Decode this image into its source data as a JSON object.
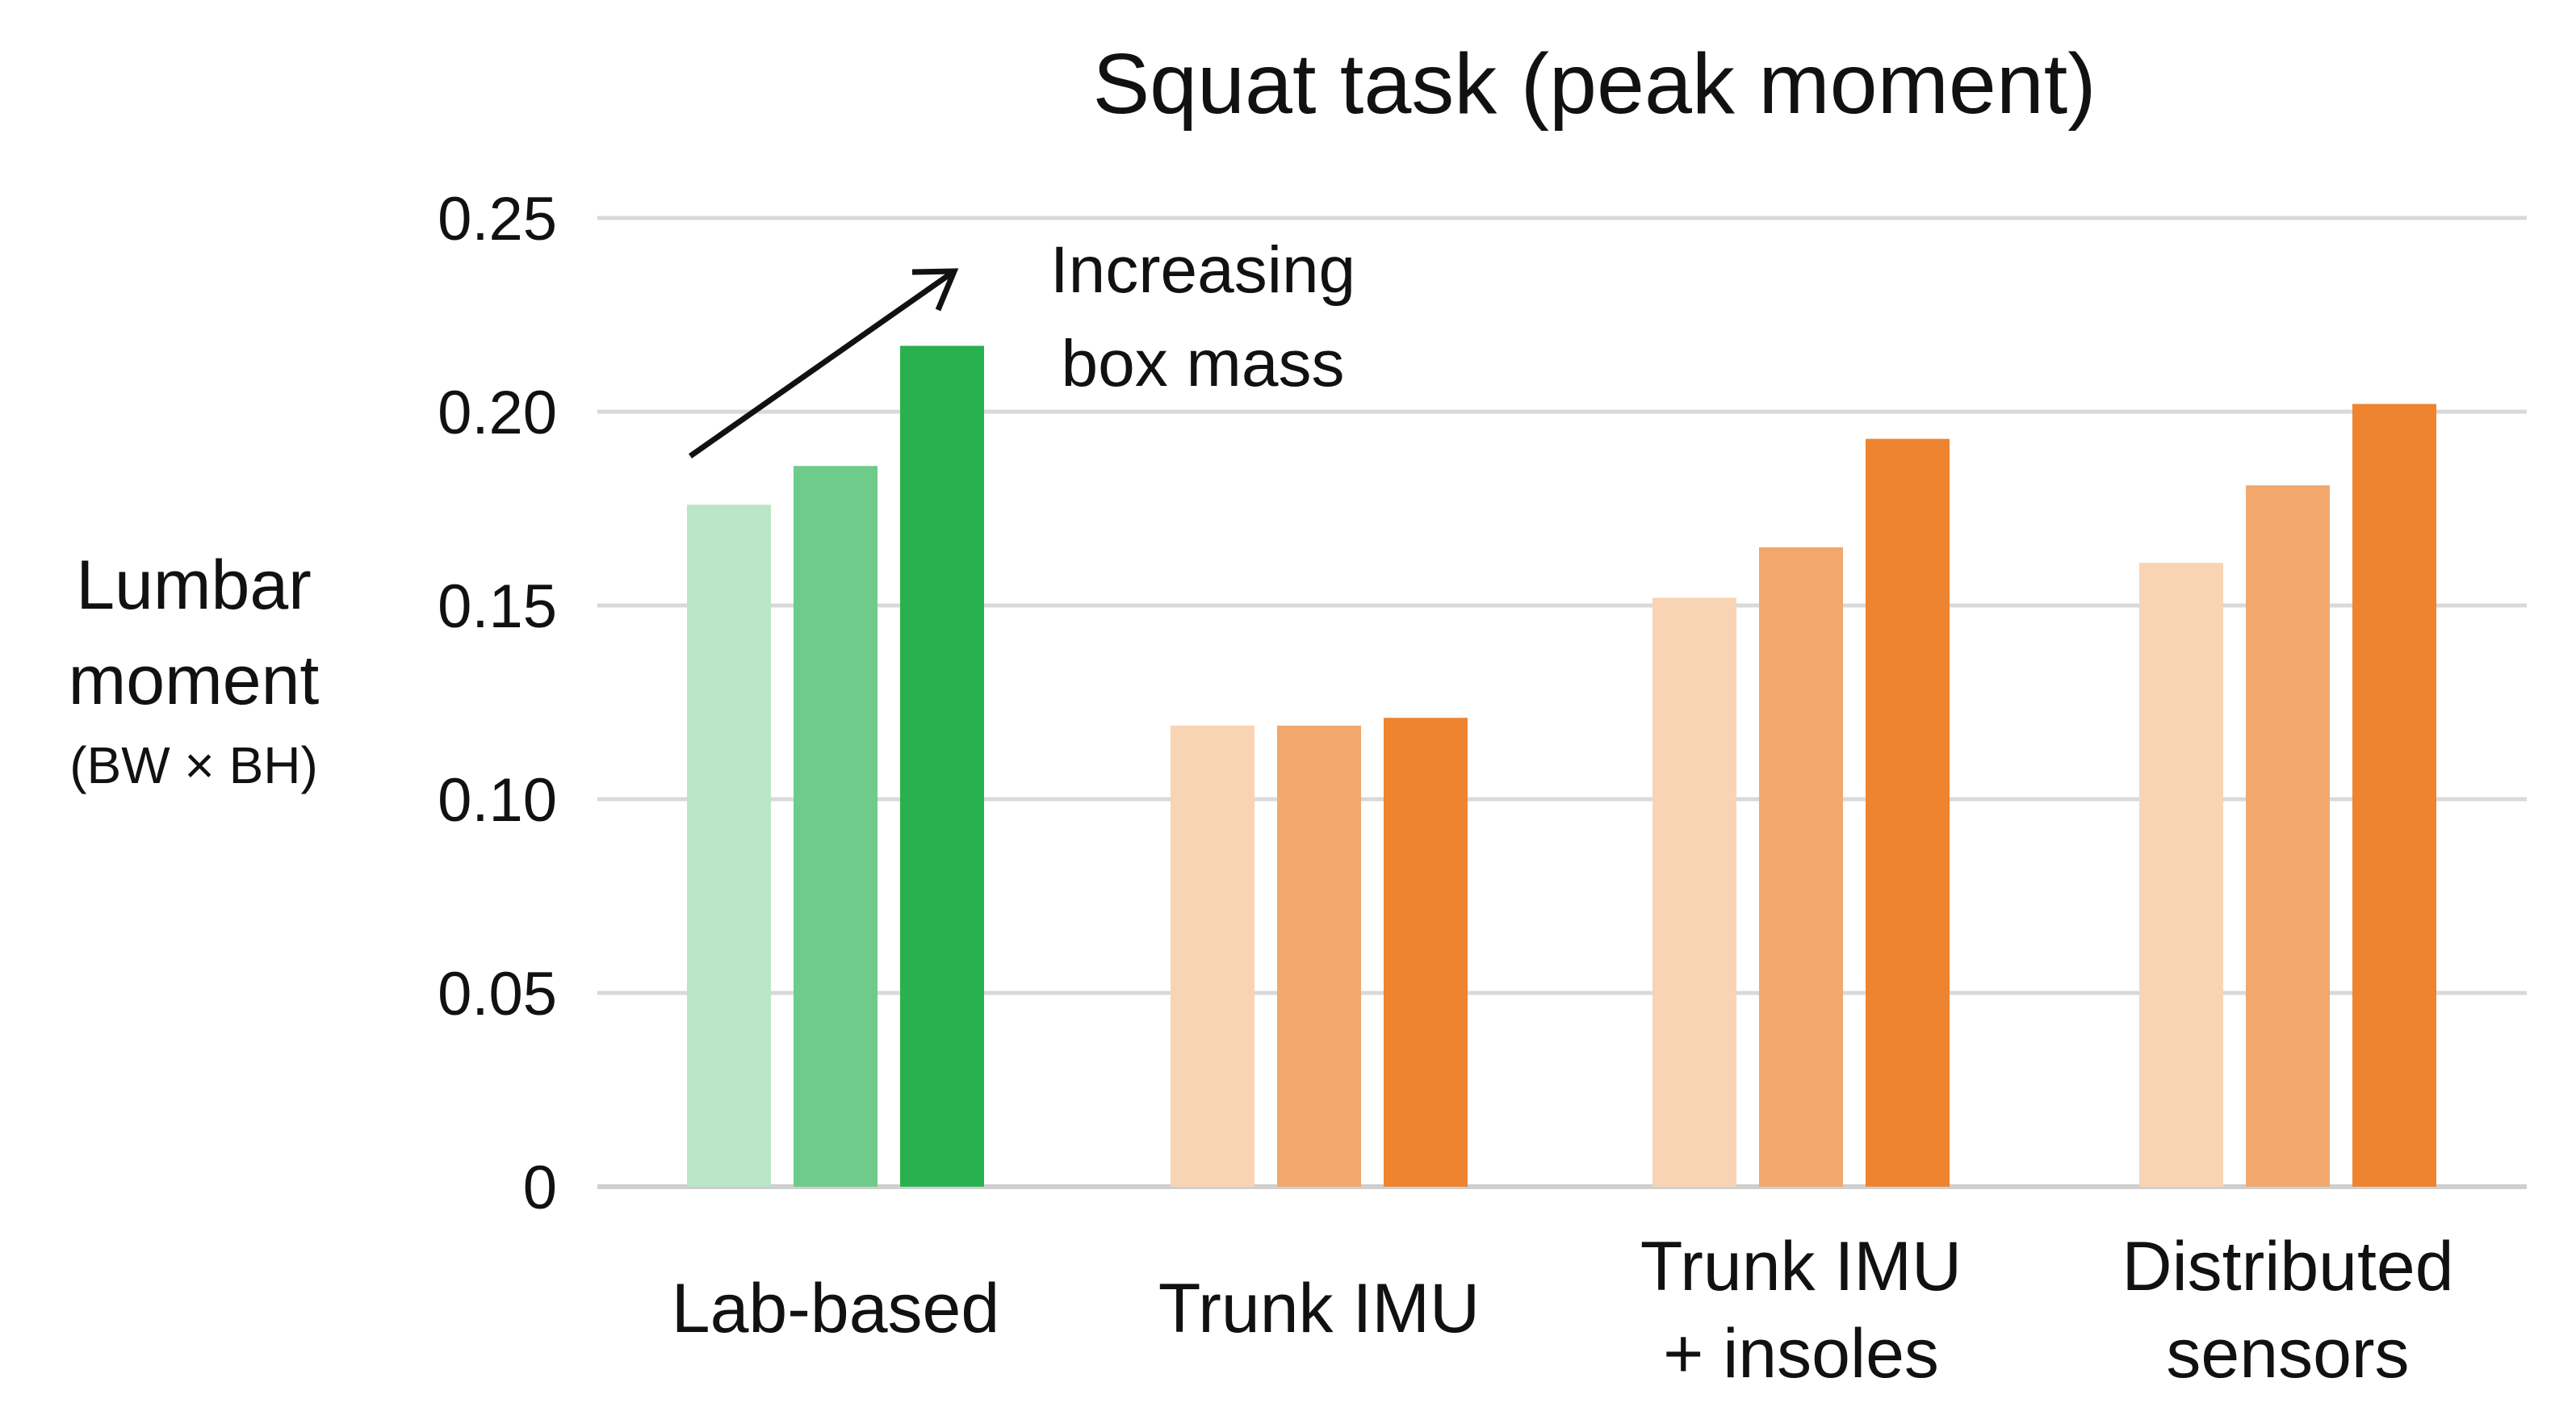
{
  "chart_data": {
    "type": "bar",
    "title": "Squat task (peak moment)",
    "ylabel": [
      "Lumbar",
      "moment"
    ],
    "ylabel_unit": "(BW × BH)",
    "ylim": [
      0,
      0.25
    ],
    "yticks": [
      "0",
      "0.05",
      "0.10",
      "0.15",
      "0.20",
      "0.25"
    ],
    "grid": true,
    "categories": [
      [
        "Lab-based"
      ],
      [
        "Trunk IMU"
      ],
      [
        "Trunk IMU",
        "+ insoles"
      ],
      [
        "Distributed",
        "sensors"
      ]
    ],
    "values": [
      [
        0.176,
        0.186,
        0.217
      ],
      [
        0.119,
        0.119,
        0.121
      ],
      [
        0.152,
        0.165,
        0.193
      ],
      [
        0.161,
        0.181,
        0.202
      ]
    ],
    "colors": [
      [
        "#b9e6c6",
        "#6ecb89",
        "#29b150"
      ],
      [
        "#f8d4b4",
        "#f2a86c",
        "#ee8430"
      ],
      [
        "#f8d4b4",
        "#f2a86c",
        "#ee8430"
      ],
      [
        "#f8d4b4",
        "#f2a86c",
        "#ee8430"
      ]
    ],
    "annotation": [
      "Increasing",
      "box mass"
    ]
  }
}
